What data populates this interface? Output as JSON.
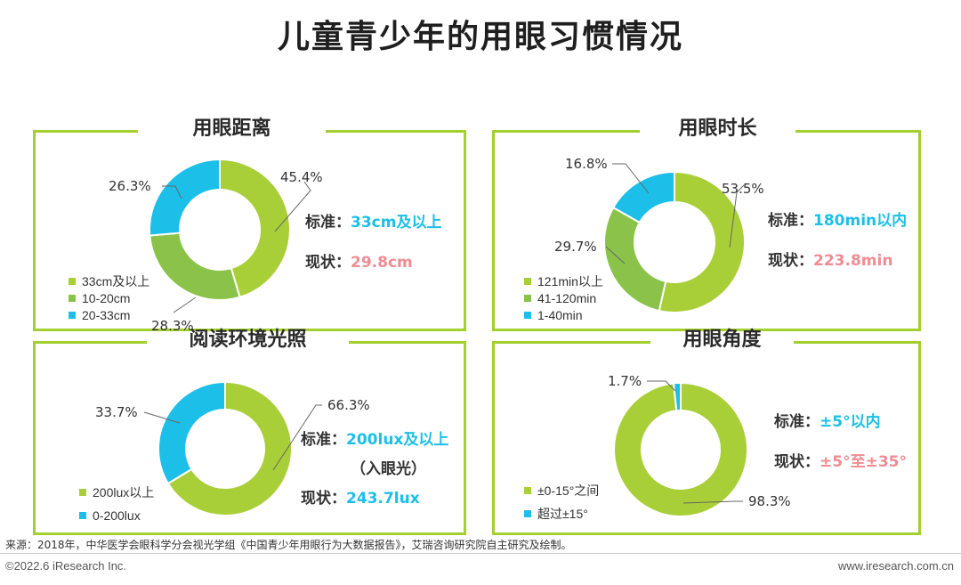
{
  "page_title": "儿童青少年的用眼习惯情况",
  "colors": {
    "lime": "#a9cf38",
    "green": "#8bc34a",
    "blue": "#1cbfe8",
    "red": "#ef8c93",
    "frame": "#a3cf2f"
  },
  "labels": {
    "standard": "标准：",
    "current": "现状："
  },
  "chart_data": [
    {
      "type": "pie",
      "title": "用眼距离",
      "categories": [
        "33cm及以上",
        "10-20cm",
        "20-33cm"
      ],
      "values": [
        45.4,
        28.3,
        26.3
      ],
      "value_labels": [
        "45.4%",
        "28.3%",
        "26.3%"
      ],
      "standard_value": "33cm及以上",
      "current_value": "29.8cm"
    },
    {
      "type": "pie",
      "title": "用眼时长",
      "categories": [
        "121min以上",
        "41-120min",
        "1-40min"
      ],
      "values": [
        53.5,
        29.7,
        16.8
      ],
      "value_labels": [
        "53.5%",
        "29.7%",
        "16.8%"
      ],
      "standard_value": "180min以内",
      "current_value": "223.8min"
    },
    {
      "type": "pie",
      "title": "阅读环境光照",
      "categories": [
        "200lux以上",
        "0-200lux"
      ],
      "values": [
        66.3,
        33.7
      ],
      "value_labels": [
        "66.3%",
        "33.7%"
      ],
      "standard_value": "200lux及以上",
      "standard_note": "（入眼光）",
      "current_value": "243.7lux"
    },
    {
      "type": "pie",
      "title": "用眼角度",
      "categories": [
        "±0-15°之间",
        "超过±15°"
      ],
      "values": [
        98.3,
        1.7
      ],
      "value_labels": [
        "98.3%",
        "1.7%"
      ],
      "standard_value": "±5°以内",
      "current_value": "±5°至±35°"
    }
  ],
  "source": "来源：2018年，中华医学会眼科学分会视光学组《中国青少年用眼行为大数据报告》，艾瑞咨询研究院自主研究及绘制。",
  "footer": {
    "copyright": "©2022.6 iResearch Inc.",
    "website": "www.iresearch.com.cn"
  }
}
